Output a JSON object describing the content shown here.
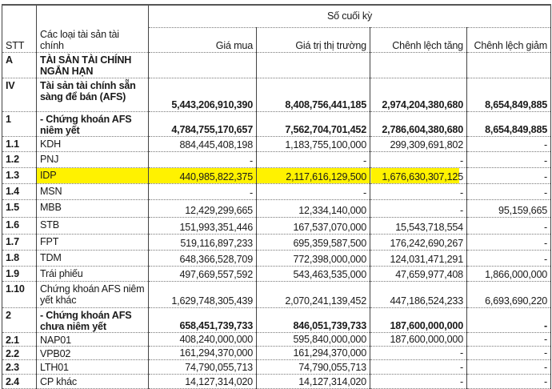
{
  "header": {
    "stt": "STT",
    "category": "Các loại tài sản tài chính",
    "group": "Số cuối kỳ",
    "columns": [
      "Giá mua",
      "Giá trị thị trường",
      "Chênh lệch tăng",
      "Chênh lệch giảm"
    ]
  },
  "highlight_color": "#fff200",
  "rows": [
    {
      "stt": "A",
      "name": "TÀI SẢN TÀI CHÍNH NGẮN HẠN",
      "v": [
        "",
        "",
        "",
        ""
      ]
    },
    {
      "stt": "IV",
      "name": "Tài sản tài chính sẵn sàng để bán (AFS)",
      "v": [
        "5,443,206,910,390",
        "8,408,756,441,185",
        "2,974,204,380,680",
        "8,654,849,885"
      ]
    },
    {
      "stt": "1",
      "name": "- Chứng khoán AFS niêm yết",
      "v": [
        "4,784,755,170,657",
        "7,562,704,701,452",
        "2,786,604,380,680",
        "8,654,849,885"
      ]
    },
    {
      "stt": "1.1",
      "name": "KDH",
      "v": [
        "884,445,408,198",
        "1,183,755,100,000",
        "299,309,691,802",
        "-"
      ]
    },
    {
      "stt": "1.2",
      "name": "PNJ",
      "v": [
        "-",
        "-",
        "-",
        "-"
      ]
    },
    {
      "stt": "1.3",
      "name": "IDP",
      "v": [
        "440,985,822,375",
        "2,117,616,129,500",
        "1,676,630,307,125",
        "-"
      ],
      "highlighted": true
    },
    {
      "stt": "1.4",
      "name": "MSN",
      "v": [
        "-",
        "-",
        "-",
        "-"
      ]
    },
    {
      "stt": "1.5",
      "name": "MBB",
      "v": [
        "12,429,299,665",
        "12,334,140,000",
        "-",
        "95,159,665"
      ]
    },
    {
      "stt": "1.6",
      "name": "STB",
      "v": [
        "151,993,351,446",
        "167,537,070,000",
        "15,543,718,554",
        "-"
      ]
    },
    {
      "stt": "1.7",
      "name": "FPT",
      "v": [
        "519,116,897,233",
        "695,359,587,500",
        "176,242,690,267",
        "-"
      ]
    },
    {
      "stt": "1.8",
      "name": "TDM",
      "v": [
        "648,366,528,709",
        "772,398,000,000",
        "124,031,471,291",
        "-"
      ]
    },
    {
      "stt": "1.9",
      "name": "Trái phiếu",
      "v": [
        "497,669,557,592",
        "543,463,535,000",
        "47,659,977,408",
        "1,866,000,000"
      ]
    },
    {
      "stt": "1.10",
      "name": "Chứng khoán AFS niêm yết khác",
      "v": [
        "1,629,748,305,439",
        "2,070,241,139,452",
        "447,186,524,233",
        "6,693,690,220"
      ]
    },
    {
      "stt": "2",
      "name": "- Chứng khoán AFS chưa niêm yết",
      "v": [
        "658,451,739,733",
        "846,051,739,733",
        "187,600,000,000",
        "-"
      ]
    },
    {
      "stt": "2.1",
      "name": "NAP01",
      "v": [
        "408,240,000,000",
        "595,840,000,000",
        "187,600,000,000",
        "-"
      ]
    },
    {
      "stt": "2.2",
      "name": "VPB02",
      "v": [
        "161,294,370,000",
        "161,294,370,000",
        "-",
        "-"
      ]
    },
    {
      "stt": "2.3",
      "name": "LTH01",
      "v": [
        "74,790,055,713",
        "74,790,055,713",
        "-",
        "-"
      ]
    },
    {
      "stt": "2.4",
      "name": "CP khác",
      "v": [
        "14,127,314,020",
        "14,127,314,020",
        "-",
        "-"
      ]
    }
  ]
}
